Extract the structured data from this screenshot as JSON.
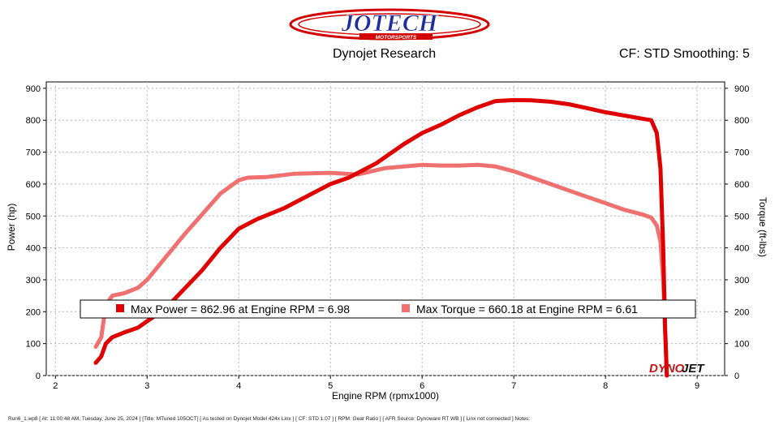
{
  "header": {
    "logo_text": "JOTECH",
    "logo_subtext": "MOTORSPORTS",
    "left": "Dynojet Research",
    "right": "CF: STD Smoothing: 5"
  },
  "watermark": {
    "text_a": "DYNO",
    "text_b": "JET"
  },
  "colors": {
    "power": "#e00000",
    "torque": "#f07070",
    "grid": "#b4b4b4",
    "logo_red": "#d40000",
    "logo_blue": "#1e2ea0"
  },
  "footer": "Run6_1.wp8 [ At: 11:00:48 AM, Tuesday, June 25, 2024 ] [Title: MTuned 105OCT] [ As tested on Dynojet Model 424x Linx ] [ CF: STD 1.07 ] [ RPM: Gear Ratio ] [ AFR Source: Dynoware RT WB ] [ Linx not connected ] Notes:",
  "chart_data": {
    "type": "line",
    "xlabel": "Engine RPM (rpmx1000)",
    "ylabel_left": "Power (hp)",
    "ylabel_right": "Torque (ft-lbs)",
    "xlim": [
      1.9,
      9.3
    ],
    "ylim": [
      0,
      920
    ],
    "x_ticks": [
      2,
      3,
      4,
      5,
      6,
      7,
      8,
      9
    ],
    "y_ticks": [
      0,
      100,
      200,
      300,
      400,
      500,
      600,
      700,
      800,
      900
    ],
    "grid": true,
    "legend_items": [
      "Max Power = 862.96 at Engine RPM = 6.98",
      "Max Torque = 660.18 at Engine RPM = 6.61"
    ],
    "series": [
      {
        "name": "Power",
        "x": [
          2.44,
          2.5,
          2.55,
          2.62,
          2.75,
          2.9,
          3.0,
          3.2,
          3.4,
          3.6,
          3.8,
          4.0,
          4.2,
          4.5,
          4.8,
          5.0,
          5.2,
          5.5,
          5.8,
          6.0,
          6.2,
          6.4,
          6.6,
          6.8,
          7.0,
          7.2,
          7.4,
          7.6,
          7.8,
          8.0,
          8.2,
          8.4,
          8.5,
          8.56,
          8.6,
          8.63,
          8.65,
          8.67
        ],
        "y": [
          40,
          60,
          100,
          120,
          135,
          150,
          170,
          210,
          270,
          330,
          400,
          460,
          490,
          525,
          570,
          600,
          620,
          665,
          725,
          760,
          785,
          815,
          840,
          860,
          863,
          862,
          858,
          850,
          838,
          825,
          815,
          805,
          800,
          760,
          650,
          400,
          150,
          0
        ]
      },
      {
        "name": "Torque",
        "x": [
          2.44,
          2.5,
          2.55,
          2.62,
          2.75,
          2.9,
          3.0,
          3.2,
          3.4,
          3.6,
          3.8,
          4.0,
          4.1,
          4.3,
          4.6,
          5.0,
          5.3,
          5.6,
          6.0,
          6.2,
          6.4,
          6.61,
          6.8,
          7.0,
          7.2,
          7.4,
          7.6,
          7.8,
          8.0,
          8.2,
          8.4,
          8.5,
          8.56,
          8.6,
          8.63,
          8.65,
          8.67
        ],
        "y": [
          90,
          120,
          220,
          250,
          258,
          275,
          300,
          370,
          440,
          505,
          570,
          612,
          620,
          622,
          632,
          635,
          630,
          650,
          660,
          658,
          658,
          660,
          655,
          640,
          620,
          600,
          580,
          560,
          540,
          520,
          505,
          495,
          470,
          420,
          300,
          150,
          0
        ]
      }
    ]
  }
}
